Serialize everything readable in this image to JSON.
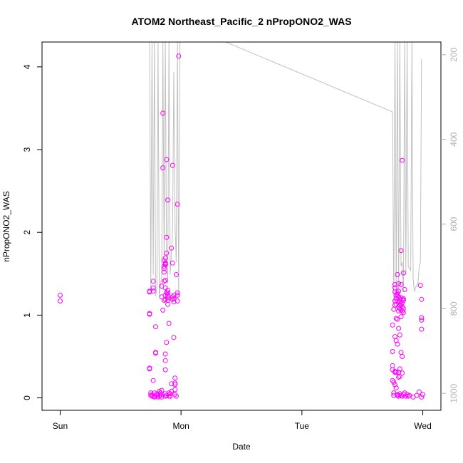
{
  "chart_data": {
    "type": "scatter",
    "title": "ATOM2 Northeast_Pacific_2 nPropONO2_WAS",
    "xlabel": "Date",
    "ylabel": "nPropONO2_WAS",
    "x_ticks": [
      {
        "x": 0,
        "label": "Sun"
      },
      {
        "x": 1,
        "label": "Mon"
      },
      {
        "x": 2,
        "label": "Tue"
      },
      {
        "x": 3,
        "label": "Wed"
      }
    ],
    "xlim": [
      -0.15,
      3.15
    ],
    "ylim": [
      -0.15,
      4.3
    ],
    "y_ticks": [
      0,
      1,
      2,
      3,
      4
    ],
    "y2_label": "",
    "y2_ticks": [
      200,
      400,
      600,
      800,
      1000
    ],
    "y2lim": [
      1040,
      170
    ],
    "colors": {
      "points": "#ff00ff",
      "line": "#c0c0c0",
      "axis": "#000000",
      "right_axis": "#b0b0b0"
    },
    "series": [
      {
        "kind": "points",
        "points": [
          [
            0.0,
            1.24
          ],
          [
            0.0,
            1.17
          ],
          [
            0.74,
            1.29
          ],
          [
            0.74,
            1.28
          ],
          [
            0.74,
            1.02
          ],
          [
            0.74,
            1.01
          ],
          [
            0.74,
            0.36
          ],
          [
            0.74,
            0.35
          ],
          [
            0.75,
            0.06
          ],
          [
            0.75,
            0.03
          ],
          [
            0.76,
            0.02
          ],
          [
            0.76,
            0.04
          ],
          [
            0.77,
            1.41
          ],
          [
            0.77,
            1.33
          ],
          [
            0.77,
            1.29
          ],
          [
            0.77,
            0.21
          ],
          [
            0.78,
            0.01
          ],
          [
            0.78,
            0.02
          ],
          [
            0.78,
            0.06
          ],
          [
            0.79,
            0.86
          ],
          [
            0.79,
            0.55
          ],
          [
            0.79,
            0.54
          ],
          [
            0.8,
            0.03
          ],
          [
            0.8,
            0.05
          ],
          [
            0.81,
            0.01
          ],
          [
            0.81,
            0.04
          ],
          [
            0.82,
            0.08
          ],
          [
            0.82,
            0.02
          ],
          [
            0.83,
            0.03
          ],
          [
            0.83,
            0.06
          ],
          [
            0.84,
            0.01
          ],
          [
            0.84,
            0.09
          ],
          [
            0.84,
            1.22
          ],
          [
            0.84,
            1.35
          ],
          [
            0.85,
            3.44
          ],
          [
            0.85,
            2.78
          ],
          [
            0.85,
            1.06
          ],
          [
            0.86,
            1.18
          ],
          [
            0.86,
            1.41
          ],
          [
            0.86,
            1.52
          ],
          [
            0.86,
            1.56
          ],
          [
            0.86,
            1.59
          ],
          [
            0.86,
            1.66
          ],
          [
            0.87,
            1.62
          ],
          [
            0.87,
            1.63
          ],
          [
            0.87,
            1.69
          ],
          [
            0.87,
            1.61
          ],
          [
            0.87,
            1.42
          ],
          [
            0.87,
            1.33
          ],
          [
            0.87,
            1.24
          ],
          [
            0.87,
            1.19
          ],
          [
            0.87,
            0.53
          ],
          [
            0.87,
            0.45
          ],
          [
            0.87,
            0.34
          ],
          [
            0.87,
            0.05
          ],
          [
            0.87,
            0.02
          ],
          [
            0.88,
            1.75
          ],
          [
            0.88,
            1.27
          ],
          [
            0.88,
            0.67
          ],
          [
            0.88,
            0.03
          ],
          [
            0.88,
            2.88
          ],
          [
            0.88,
            1.94
          ],
          [
            0.89,
            1.21
          ],
          [
            0.89,
            1.27
          ],
          [
            0.89,
            1.24
          ],
          [
            0.89,
            1.18
          ],
          [
            0.89,
            1.3
          ],
          [
            0.89,
            2.39
          ],
          [
            0.89,
            1.13
          ],
          [
            0.9,
            0.9
          ],
          [
            0.9,
            0.06
          ],
          [
            0.9,
            0.02
          ],
          [
            0.91,
            0.02
          ],
          [
            0.91,
            0.05
          ],
          [
            0.92,
            0.17
          ],
          [
            0.92,
            0.08
          ],
          [
            0.92,
            1.81
          ],
          [
            0.93,
            2.81
          ],
          [
            0.93,
            1.22
          ],
          [
            0.93,
            1.19
          ],
          [
            0.93,
            1.63
          ],
          [
            0.94,
            1.24
          ],
          [
            0.94,
            1.2
          ],
          [
            0.94,
            1.16
          ],
          [
            0.94,
            0.73
          ],
          [
            0.95,
            0.24
          ],
          [
            0.95,
            0.18
          ],
          [
            0.95,
            0.16
          ],
          [
            0.95,
            0.1
          ],
          [
            0.95,
            0.04
          ],
          [
            0.96,
            0.02
          ],
          [
            0.96,
            1.49
          ],
          [
            0.97,
            2.34
          ],
          [
            0.97,
            1.27
          ],
          [
            0.97,
            1.24
          ],
          [
            0.97,
            1.17
          ],
          [
            0.98,
            4.13
          ],
          [
            2.75,
            0.88
          ],
          [
            2.75,
            0.56
          ],
          [
            2.75,
            0.39
          ],
          [
            2.75,
            0.34
          ],
          [
            2.75,
            0.21
          ],
          [
            2.76,
            1.07
          ],
          [
            2.76,
            0.19
          ],
          [
            2.76,
            0.06
          ],
          [
            2.76,
            0.03
          ],
          [
            2.77,
            1.37
          ],
          [
            2.77,
            1.33
          ],
          [
            2.77,
            1.28
          ],
          [
            2.77,
            1.17
          ],
          [
            2.77,
            1.12
          ],
          [
            2.77,
            0.74
          ],
          [
            2.77,
            0.32
          ],
          [
            2.77,
            0.31
          ],
          [
            2.77,
            0.16
          ],
          [
            2.78,
            1.24
          ],
          [
            2.78,
            1.2
          ],
          [
            2.78,
            1.13
          ],
          [
            2.78,
            0.96
          ],
          [
            2.78,
            0.69
          ],
          [
            2.78,
            0.31
          ],
          [
            2.78,
            0.12
          ],
          [
            2.79,
            1.49
          ],
          [
            2.79,
            1.27
          ],
          [
            2.79,
            1.25
          ],
          [
            2.79,
            1.17
          ],
          [
            2.79,
            0.95
          ],
          [
            2.79,
            0.65
          ],
          [
            2.79,
            0.04
          ],
          [
            2.79,
            0.03
          ],
          [
            2.8,
            1.38
          ],
          [
            2.8,
            1.29
          ],
          [
            2.8,
            1.22
          ],
          [
            2.8,
            1.1
          ],
          [
            2.8,
            1.05
          ],
          [
            2.8,
            0.84
          ],
          [
            2.8,
            0.31
          ],
          [
            2.8,
            0.25
          ],
          [
            2.8,
            0.02
          ],
          [
            2.81,
            1.19
          ],
          [
            2.81,
            1.16
          ],
          [
            2.81,
            1.12
          ],
          [
            2.81,
            1.08
          ],
          [
            2.81,
            0.76
          ],
          [
            2.81,
            0.35
          ],
          [
            2.81,
            0.26
          ],
          [
            2.81,
            0.05
          ],
          [
            2.82,
            1.78
          ],
          [
            2.82,
            1.37
          ],
          [
            2.82,
            1.21
          ],
          [
            2.82,
            1.13
          ],
          [
            2.82,
            1.06
          ],
          [
            2.82,
            0.98
          ],
          [
            2.82,
            0.55
          ],
          [
            2.82,
            0.03
          ],
          [
            2.83,
            2.87
          ],
          [
            2.83,
            1.19
          ],
          [
            2.83,
            1.15
          ],
          [
            2.83,
            1.1
          ],
          [
            2.83,
            1.05
          ],
          [
            2.83,
            0.5
          ],
          [
            2.83,
            0.3
          ],
          [
            2.83,
            0.02
          ],
          [
            2.84,
            1.51
          ],
          [
            2.84,
            1.2
          ],
          [
            2.84,
            1.18
          ],
          [
            2.84,
            1.08
          ],
          [
            2.84,
            1.03
          ],
          [
            2.84,
            0.04
          ],
          [
            2.85,
            1.31
          ],
          [
            2.85,
            0.06
          ],
          [
            2.86,
            0.02
          ],
          [
            2.87,
            0.04
          ],
          [
            2.88,
            0.02
          ],
          [
            2.89,
            0.03
          ],
          [
            2.92,
            0.01
          ],
          [
            2.95,
            0.03
          ],
          [
            2.97,
            0.07
          ],
          [
            2.98,
            1.36
          ],
          [
            2.99,
            1.19
          ],
          [
            2.99,
            0.97
          ],
          [
            2.99,
            0.94
          ],
          [
            2.99,
            0.83
          ],
          [
            3.0,
            0.04
          ],
          [
            2.99,
            0.01
          ]
        ]
      },
      {
        "kind": "line",
        "axis": "right",
        "points": [
          [
            0.74,
            170
          ],
          [
            0.75,
            760
          ],
          [
            0.76,
            170
          ],
          [
            0.77,
            720
          ],
          [
            0.78,
            170
          ],
          [
            0.79,
            770
          ],
          [
            0.8,
            750
          ],
          [
            0.81,
            170
          ],
          [
            0.82,
            770
          ],
          [
            0.84,
            720
          ],
          [
            0.85,
            170
          ],
          [
            0.86,
            700
          ],
          [
            0.87,
            170
          ],
          [
            0.88,
            690
          ],
          [
            0.89,
            740
          ],
          [
            0.9,
            170
          ],
          [
            0.91,
            720
          ],
          [
            0.92,
            670
          ],
          [
            0.93,
            610
          ],
          [
            0.94,
            240
          ],
          [
            0.95,
            600
          ],
          [
            0.96,
            690
          ],
          [
            0.97,
            170
          ],
          [
            0.98,
            770
          ],
          [
            0.99,
            170
          ],
          [
            1.0,
            170
          ],
          [
            1.37,
            170
          ],
          [
            2.75,
            335
          ],
          [
            2.76,
            790
          ],
          [
            2.77,
            170
          ],
          [
            2.78,
            770
          ],
          [
            2.79,
            170
          ],
          [
            2.8,
            780
          ],
          [
            2.81,
            170
          ],
          [
            2.82,
            700
          ],
          [
            2.83,
            690
          ],
          [
            2.84,
            760
          ],
          [
            2.85,
            170
          ],
          [
            2.86,
            720
          ],
          [
            2.87,
            170
          ],
          [
            2.88,
            700
          ],
          [
            2.9,
            710
          ],
          [
            2.91,
            170
          ],
          [
            2.92,
            730
          ],
          [
            2.93,
            760
          ],
          [
            2.94,
            750
          ],
          [
            2.96,
            740
          ],
          [
            2.97,
            700
          ],
          [
            2.98,
            690
          ],
          [
            2.99,
            210
          ]
        ]
      }
    ]
  }
}
